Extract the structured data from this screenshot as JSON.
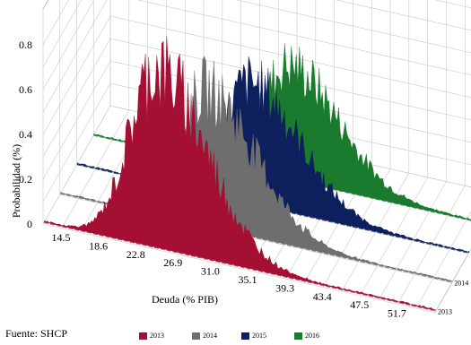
{
  "chart_data": {
    "type": "area",
    "title": "",
    "xlabel": "Deuda (% PIB)",
    "ylabel": "Probabilidad (%)",
    "x_ticks": [
      "14.5",
      "18.6",
      "22.8",
      "26.9",
      "31.0",
      "35.1",
      "39.3",
      "43.4",
      "47.5",
      "51.7"
    ],
    "y_ticks": [
      "0",
      "0.2",
      "0.4",
      "0.6",
      "0.8"
    ],
    "ylim": [
      0,
      0.8
    ],
    "grid": true,
    "projection": "3d",
    "legend_position": "bottom",
    "series": [
      {
        "name": "2013",
        "color": "#a50f34",
        "mode_x": 26.9,
        "peak": 0.82
      },
      {
        "name": "2014",
        "color": "#6e6e6e",
        "mode_x": 30.5,
        "peak": 0.62
      },
      {
        "name": "2015",
        "color": "#0d1f5c",
        "mode_x": 33.5,
        "peak": 0.55
      },
      {
        "name": "2016",
        "color": "#1a7a2e",
        "mode_x": 36.0,
        "peak": 0.52
      }
    ]
  },
  "source": "Fuente: SHCP"
}
